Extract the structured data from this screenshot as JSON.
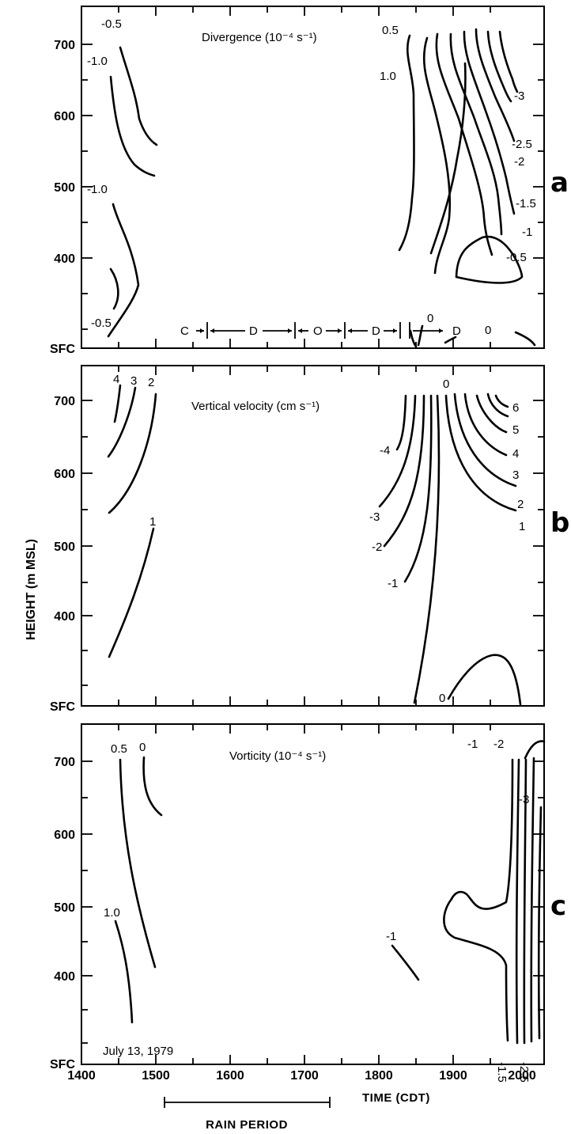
{
  "figure": {
    "y_axis_title": "HEIGHT (m MSL)",
    "x_axis_title": "TIME (CDT)",
    "rain_period_label": "RAIN PERIOD",
    "rain_period": [
      1510,
      1745
    ],
    "date_label": "July 13, 1979"
  },
  "chart_data": [
    {
      "type": "contour",
      "panel_letter": "a",
      "title": "Divergence (10⁻⁴ s⁻¹)",
      "xlim": [
        1400,
        2030
      ],
      "ylim": [
        "SFC",
        740
      ],
      "x_ticks": [
        "1400",
        "1500",
        "1600",
        "1700",
        "1800",
        "1900",
        "2000"
      ],
      "y_ticks": [
        "SFC",
        "400",
        "500",
        "600",
        "700"
      ],
      "contour_labels": [
        "-0.5",
        "-1.0",
        "-1.0",
        "-0.5",
        "0.5",
        "1.0",
        "-3",
        "-2.5",
        "-2",
        "-1.5",
        "-1",
        "-0.5",
        "0",
        "0"
      ],
      "period_markers": [
        "C",
        "D",
        "O",
        "D",
        "D"
      ]
    },
    {
      "type": "contour",
      "panel_letter": "b",
      "title": "Vertical velocity (cm s⁻¹)",
      "xlim": [
        1400,
        2030
      ],
      "ylim": [
        "SFC",
        740
      ],
      "x_ticks": [
        "1400",
        "1500",
        "1600",
        "1700",
        "1800",
        "1900",
        "2000"
      ],
      "y_ticks": [
        "SFC",
        "400",
        "500",
        "600",
        "700"
      ],
      "contour_labels": [
        "4",
        "3",
        "2",
        "1",
        "0",
        "-4",
        "-3",
        "-2",
        "-1",
        "0",
        "6",
        "5",
        "4",
        "3",
        "2",
        "1"
      ]
    },
    {
      "type": "contour",
      "panel_letter": "c",
      "title": "Vorticity (10⁻⁴ s⁻¹)",
      "xlim": [
        1400,
        2030
      ],
      "ylim": [
        "SFC",
        740
      ],
      "x_ticks": [
        "1400",
        "1500",
        "1600",
        "1700",
        "1800",
        "1900",
        "2000"
      ],
      "y_ticks": [
        "SFC",
        "400",
        "500",
        "600",
        "700"
      ],
      "contour_labels": [
        "0.5",
        "0",
        "1.0",
        "-1",
        "-1",
        "-2",
        "-3",
        "-1.5",
        "-2.5"
      ]
    }
  ]
}
